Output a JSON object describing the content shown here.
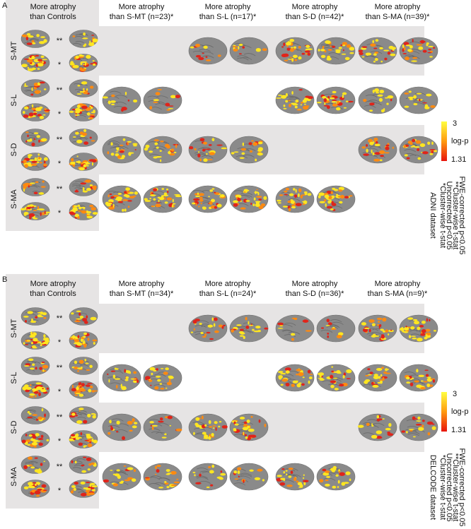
{
  "panels": [
    {
      "letter": "A",
      "columns": [
        [
          "More atrophy",
          "than Controls"
        ],
        [
          "More atrophy",
          "than S-MT (n=23)*"
        ],
        [
          "More atrophy",
          "than S-L (n=17)*"
        ],
        [
          "More atrophy",
          "than S-D (n=42)*"
        ],
        [
          "More atrophy",
          "than S-MA (n=39)*"
        ]
      ],
      "rows": [
        "S-MT",
        "S-L",
        "S-D",
        "S-MA"
      ],
      "significance": [
        "**",
        "*"
      ],
      "colorbar": {
        "max": 3,
        "label": "log-p",
        "min": 1.31
      },
      "dataset": "ADNI dataset",
      "notes": [
        "*Cluster-wise t-stat",
        "Uncorrected p<0.05",
        "**Cluster-wise t-stat",
        "FWE-corrected p<0.05"
      ]
    },
    {
      "letter": "B",
      "columns": [
        [
          "More atrophy",
          "than Controls"
        ],
        [
          "More atrophy",
          "than S-MT (n=34)*"
        ],
        [
          "More atrophy",
          "than S-L (n=24)*"
        ],
        [
          "More atrophy",
          "than S-D (n=36)*"
        ],
        [
          "More atrophy",
          "than S-MA (n=9)*"
        ]
      ],
      "rows": [
        "S-MT",
        "S-L",
        "S-D",
        "S-MA"
      ],
      "significance": [
        "**",
        "*"
      ],
      "colorbar": {
        "max": 3,
        "label": "log-p",
        "min": 1.31
      },
      "dataset": "DELCODE dataset",
      "notes": [
        "*Cluster-wise t-stat",
        "Uncorrected p<0.05",
        "**Cluster-wise t-stat",
        "FWE-corrected p<0.05"
      ]
    }
  ]
}
